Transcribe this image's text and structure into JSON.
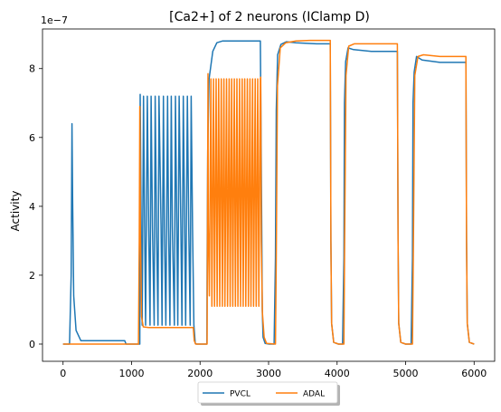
{
  "chart_data": {
    "type": "line",
    "title": "[Ca2+] of 2 neurons (IClamp D)",
    "xlabel": "",
    "ylabel": "Activity",
    "y_offset_label": "1e−7",
    "xlim": [
      -300,
      6300
    ],
    "ylim": [
      -0.5,
      9.15
    ],
    "y_scale_exponent": -7,
    "x_ticks": [
      0,
      1000,
      2000,
      3000,
      4000,
      5000,
      6000
    ],
    "x_tick_labels": [
      "0",
      "1000",
      "2000",
      "3000",
      "4000",
      "5000",
      "6000"
    ],
    "y_ticks": [
      0,
      2,
      4,
      6,
      8
    ],
    "y_tick_labels": [
      "0",
      "2",
      "4",
      "6",
      "8"
    ],
    "grid": false,
    "legend_position": "below plot, centered",
    "series": [
      {
        "name": "PVCL",
        "color": "#1f77b4",
        "x": [
          0,
          95,
          118,
          130,
          140,
          155,
          190,
          260,
          900,
          920,
          1100,
          1120,
          1125,
          1140,
          1155,
          1175,
          1190,
          1205,
          1230,
          1250,
          1270,
          1285,
          1305,
          1330,
          1345,
          1365,
          1385,
          1400,
          1430,
          1445,
          1465,
          1480,
          1500,
          1525,
          1540,
          1560,
          1580,
          1595,
          1625,
          1640,
          1660,
          1675,
          1695,
          1720,
          1735,
          1755,
          1775,
          1790,
          1815,
          1835,
          1855,
          1870,
          1890,
          1910,
          1930,
          1950,
          2100,
          2102,
          2112,
          2132,
          2185,
          2245,
          2325,
          2445,
          2600,
          2880,
          2900,
          2908,
          2920,
          2950,
          3010,
          3080,
          3100,
          3112,
          3132,
          3180,
          3260,
          3400,
          3700,
          3900,
          3910,
          3920,
          3950,
          4020,
          4080,
          4100,
          4108,
          4125,
          4160,
          4240,
          4500,
          4880,
          4890,
          4900,
          4930,
          5000,
          5080,
          5100,
          5108,
          5125,
          5160,
          5240,
          5500,
          5880,
          5890,
          5900,
          5930,
          6000
        ],
        "y": [
          0,
          0,
          2,
          6.4,
          4.2,
          1.4,
          0.4,
          0.1,
          0.1,
          0,
          0,
          0,
          7.25,
          3.5,
          0.55,
          7.2,
          3.4,
          0.55,
          7.2,
          3.4,
          0.55,
          7.2,
          3.4,
          0.55,
          7.2,
          3.4,
          0.55,
          7.2,
          3.4,
          0.55,
          7.2,
          3.4,
          0.55,
          7.2,
          3.4,
          0.55,
          7.2,
          3.4,
          0.55,
          7.2,
          3.4,
          0.55,
          7.2,
          3.4,
          0.55,
          7.2,
          3.4,
          0.55,
          7.2,
          3.4,
          0.55,
          7.2,
          3.4,
          0.55,
          0.02,
          0,
          0,
          2,
          5.6,
          7.7,
          8.5,
          8.75,
          8.8,
          8.8,
          8.8,
          8.8,
          3.5,
          1,
          0.2,
          0.02,
          0,
          0,
          2.5,
          6.8,
          8.4,
          8.7,
          8.78,
          8.75,
          8.72,
          8.72,
          3,
          0.6,
          0.05,
          0,
          0,
          2.5,
          7,
          8.2,
          8.6,
          8.55,
          8.5,
          8.5,
          3,
          0.6,
          0.05,
          0,
          0,
          2.5,
          7,
          7.9,
          8.35,
          8.25,
          8.18,
          8.18,
          3,
          0.6,
          0.05,
          0
        ]
      },
      {
        "name": "ADAL",
        "color": "#ff7f0e",
        "x": [
          0,
          400,
          1100,
          1112,
          1120,
          1128,
          1145,
          1170,
          1250,
          1400,
          1850,
          1900,
          1915,
          1935,
          2100,
          2103,
          2115,
          2120,
          2135,
          2158,
          2173,
          2196,
          2211,
          2234,
          2249,
          2272,
          2287,
          2310,
          2325,
          2348,
          2363,
          2386,
          2401,
          2424,
          2439,
          2462,
          2477,
          2500,
          2515,
          2538,
          2553,
          2576,
          2591,
          2614,
          2629,
          2652,
          2667,
          2690,
          2705,
          2728,
          2743,
          2766,
          2781,
          2804,
          2819,
          2842,
          2857,
          2880,
          2885,
          2893,
          2910,
          2935,
          2970,
          3100,
          3112,
          3130,
          3170,
          3250,
          3400,
          3600,
          3900,
          3910,
          3920,
          3950,
          4020,
          4080,
          4100,
          4110,
          4130,
          4170,
          4250,
          4500,
          4880,
          4890,
          4900,
          4930,
          5000,
          5080,
          5100,
          5112,
          5135,
          5180,
          5260,
          5500,
          5880,
          5890,
          5900,
          5930,
          6000
        ],
        "y": [
          0,
          0,
          0,
          3,
          6.9,
          3.5,
          0.8,
          0.5,
          0.48,
          0.48,
          0.48,
          0.48,
          0.1,
          0,
          0,
          0,
          7.85,
          3.5,
          1.4,
          7.7,
          1.1,
          7.7,
          1.1,
          7.7,
          1.1,
          7.7,
          1.1,
          7.7,
          1.1,
          7.7,
          1.1,
          7.7,
          1.1,
          7.7,
          1.1,
          7.7,
          1.1,
          7.7,
          1.1,
          7.7,
          1.1,
          7.7,
          1.1,
          7.7,
          1.1,
          7.7,
          1.1,
          7.7,
          1.1,
          7.7,
          1.1,
          7.7,
          1.1,
          7.7,
          1.1,
          7.7,
          1.1,
          7.7,
          7.75,
          3,
          0.9,
          0.2,
          0.02,
          0,
          2.5,
          7.5,
          8.6,
          8.75,
          8.8,
          8.82,
          8.82,
          3,
          0.6,
          0.05,
          0,
          0,
          0,
          3,
          7.8,
          8.65,
          8.72,
          8.72,
          8.72,
          3,
          0.6,
          0.05,
          0,
          0,
          0,
          2.5,
          7.8,
          8.35,
          8.4,
          8.35,
          8.35,
          3,
          0.6,
          0.05,
          0
        ]
      }
    ]
  }
}
